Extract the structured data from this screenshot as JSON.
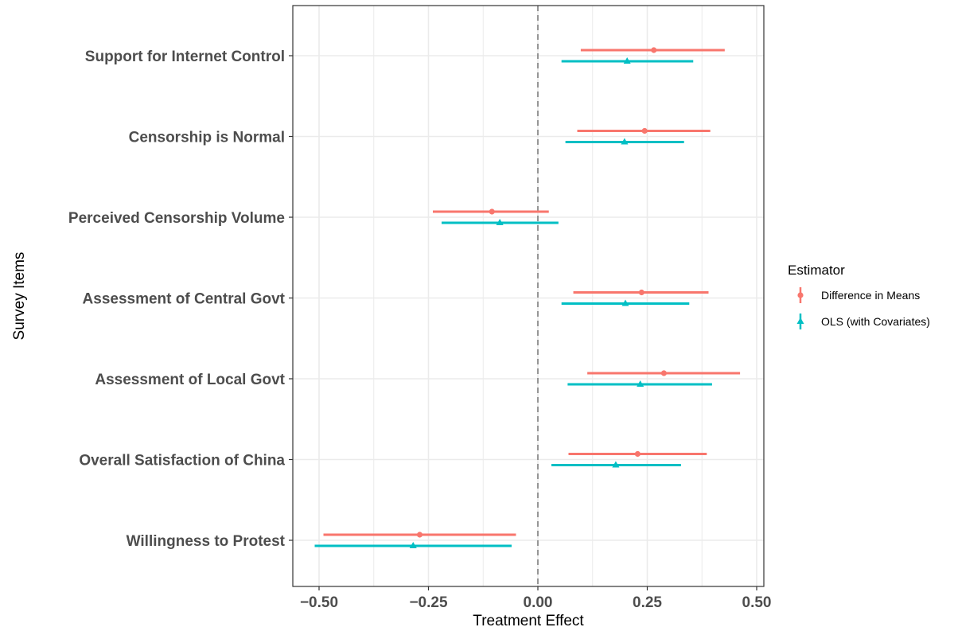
{
  "chart_data": {
    "type": "scatter",
    "title": "",
    "xlabel": "Treatment Effect",
    "ylabel": "Survey Items",
    "xlim": [
      -0.56,
      0.51
    ],
    "xticks": [
      -0.5,
      -0.25,
      0.0,
      0.25,
      0.5
    ],
    "xtick_labels": [
      "−0.50",
      "−0.25",
      "0.00",
      "0.25",
      "0.50"
    ],
    "grid": true,
    "reference_line": {
      "x": 0,
      "style": "dashed"
    },
    "categories": [
      "Support for Internet Control",
      "Censorship is Normal",
      "Perceived Censorship Volume",
      "Assessment of Central Govt",
      "Assessment of Local Govt",
      "Overall Satisfaction of China",
      "Willingness to Protest"
    ],
    "legend": {
      "title": "Estimator",
      "position": "right"
    },
    "series": [
      {
        "name": "Difference in Means",
        "color": "#F8766D",
        "marker": "circle",
        "estimates": [
          0.265,
          0.244,
          -0.105,
          0.237,
          0.288,
          0.228,
          -0.27
        ],
        "ci_low": [
          0.098,
          0.09,
          -0.24,
          0.081,
          0.113,
          0.07,
          -0.49
        ],
        "ci_high": [
          0.427,
          0.394,
          0.025,
          0.39,
          0.462,
          0.386,
          -0.05
        ]
      },
      {
        "name": "OLS (with Covariates)",
        "color": "#00BFC4",
        "marker": "triangle",
        "estimates": [
          0.204,
          0.198,
          -0.087,
          0.2,
          0.234,
          0.178,
          -0.285
        ],
        "ci_low": [
          0.054,
          0.063,
          -0.22,
          0.054,
          0.068,
          0.031,
          -0.51
        ],
        "ci_high": [
          0.355,
          0.334,
          0.047,
          0.346,
          0.398,
          0.327,
          -0.06
        ]
      }
    ]
  }
}
